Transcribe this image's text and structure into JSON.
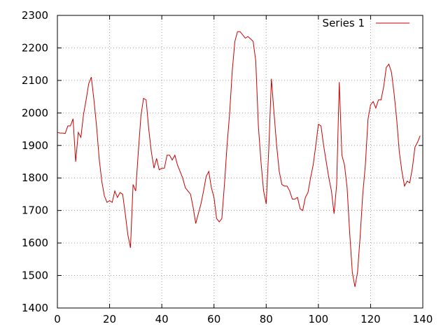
{
  "chart_data": {
    "type": "line",
    "title": "",
    "xlabel": "",
    "ylabel": "",
    "xlim": [
      0,
      140
    ],
    "ylim": [
      1400,
      2300
    ],
    "xticks": [
      0,
      20,
      40,
      60,
      80,
      100,
      120,
      140
    ],
    "yticks": [
      1400,
      1500,
      1600,
      1700,
      1800,
      1900,
      2000,
      2100,
      2200,
      2300
    ],
    "grid": true,
    "legend": "top-right",
    "series": [
      {
        "name": "Series 1",
        "color": "#cc0000",
        "x": [
          0,
          1,
          2,
          3,
          4,
          5,
          6,
          7,
          8,
          9,
          10,
          11,
          12,
          13,
          14,
          15,
          16,
          17,
          18,
          19,
          20,
          21,
          22,
          23,
          24,
          25,
          26,
          27,
          28,
          29,
          30,
          31,
          32,
          33,
          34,
          35,
          36,
          37,
          38,
          39,
          40,
          41,
          42,
          43,
          44,
          45,
          46,
          47,
          48,
          49,
          50,
          51,
          52,
          53,
          54,
          55,
          56,
          57,
          58,
          59,
          60,
          61,
          62,
          63,
          64,
          65,
          66,
          67,
          68,
          69,
          70,
          71,
          72,
          73,
          74,
          75,
          76,
          77,
          78,
          79,
          80,
          81,
          82,
          83,
          84,
          85,
          86,
          87,
          88,
          89,
          90,
          91,
          92,
          93,
          94,
          95,
          96,
          97,
          98,
          99,
          100,
          101,
          102,
          103,
          104,
          105,
          106,
          107,
          108,
          109,
          110,
          111,
          112,
          113,
          114,
          115,
          116,
          117,
          118,
          119,
          120,
          121,
          122,
          123,
          124,
          125,
          126,
          127,
          128,
          129,
          130,
          131,
          132,
          133,
          134,
          135,
          136,
          137,
          138,
          139
        ],
        "values": [
          1940,
          1938,
          1938,
          1937,
          1960,
          1960,
          1982,
          1850,
          1940,
          1925,
          1995,
          2040,
          2090,
          2110,
          2040,
          1960,
          1860,
          1790,
          1745,
          1725,
          1730,
          1725,
          1760,
          1740,
          1755,
          1750,
          1690,
          1625,
          1585,
          1780,
          1760,
          1880,
          1990,
          2045,
          2040,
          1950,
          1880,
          1830,
          1860,
          1825,
          1830,
          1830,
          1870,
          1870,
          1855,
          1870,
          1840,
          1820,
          1800,
          1770,
          1760,
          1750,
          1710,
          1660,
          1690,
          1720,
          1760,
          1805,
          1820,
          1770,
          1740,
          1675,
          1665,
          1675,
          1780,
          1900,
          2000,
          2130,
          2220,
          2250,
          2250,
          2240,
          2230,
          2235,
          2228,
          2220,
          2160,
          1960,
          1850,
          1760,
          1720,
          1890,
          2105,
          2000,
          1900,
          1820,
          1780,
          1775,
          1775,
          1760,
          1735,
          1735,
          1740,
          1705,
          1700,
          1740,
          1755,
          1800,
          1840,
          1900,
          1965,
          1960,
          1900,
          1850,
          1800,
          1760,
          1690,
          1780,
          2095,
          1870,
          1840,
          1770,
          1630,
          1510,
          1465,
          1510,
          1620,
          1750,
          1840,
          1980,
          2025,
          2035,
          2015,
          2040,
          2040,
          2080,
          2140,
          2150,
          2125,
          2060,
          1980,
          1880,
          1820,
          1775,
          1790,
          1785,
          1830,
          1895,
          1910,
          1930
        ]
      }
    ]
  }
}
